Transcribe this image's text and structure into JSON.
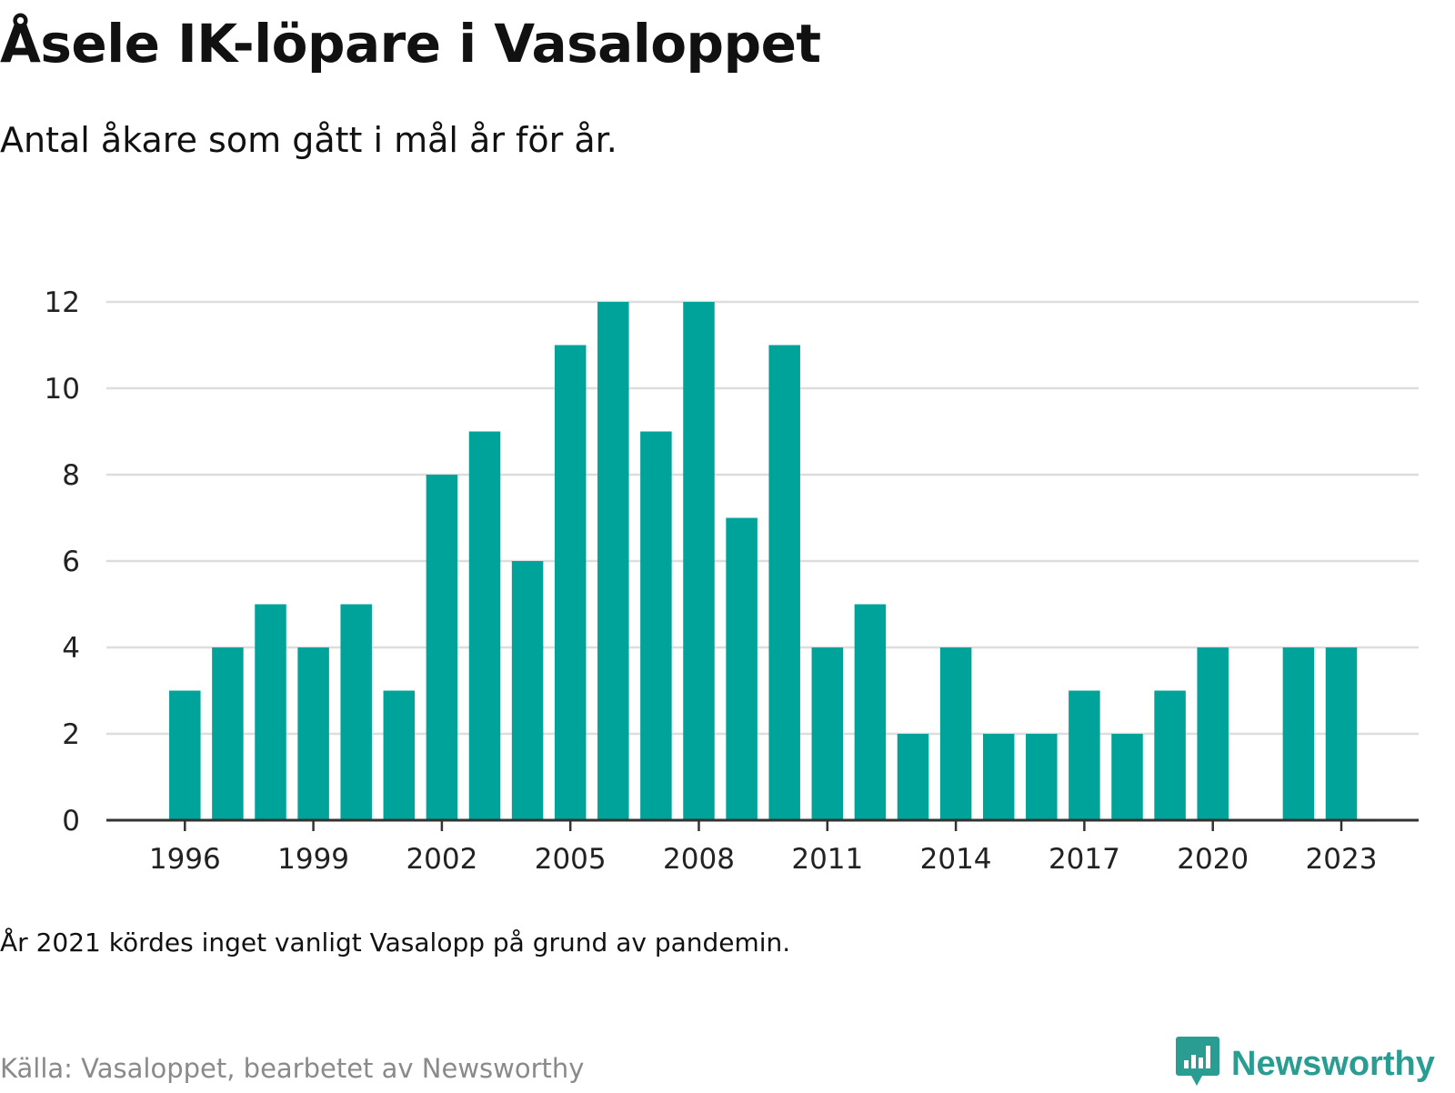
{
  "title": "Åsele IK-löpare i Vasaloppet",
  "subtitle": "Antal åkare som gått i mål år för år.",
  "note": "År 2021 kördes inget vanligt Vasalopp på grund av pandemin.",
  "source": "Källa: Vasaloppet, bearbetet av Newsworthy",
  "brand": {
    "name": "Newsworthy",
    "icon": "newsworthy-logo-icon"
  },
  "colors": {
    "bar": "#00a39a",
    "grid": "#dddddd",
    "axis": "#333333",
    "brand": "#2a9d92"
  },
  "chart_data": {
    "type": "bar",
    "categories": [
      "1996",
      "1997",
      "1998",
      "1999",
      "2000",
      "2001",
      "2002",
      "2003",
      "2004",
      "2005",
      "2006",
      "2007",
      "2008",
      "2009",
      "2010",
      "2011",
      "2012",
      "2013",
      "2014",
      "2015",
      "2016",
      "2017",
      "2018",
      "2019",
      "2020",
      "2021",
      "2022",
      "2023"
    ],
    "values": [
      3,
      4,
      5,
      4,
      5,
      3,
      8,
      9,
      6,
      11,
      12,
      9,
      12,
      7,
      11,
      4,
      5,
      2,
      4,
      2,
      2,
      3,
      2,
      3,
      4,
      0,
      4,
      4
    ],
    "x_tick_labels": [
      "1996",
      "1999",
      "2002",
      "2005",
      "2008",
      "2011",
      "2014",
      "2017",
      "2020",
      "2023"
    ],
    "y_tick_labels": [
      "0",
      "2",
      "4",
      "6",
      "8",
      "10",
      "12"
    ],
    "ylim": [
      0,
      12
    ],
    "grid": true,
    "legend": "none",
    "xlabel": "",
    "ylabel": ""
  }
}
